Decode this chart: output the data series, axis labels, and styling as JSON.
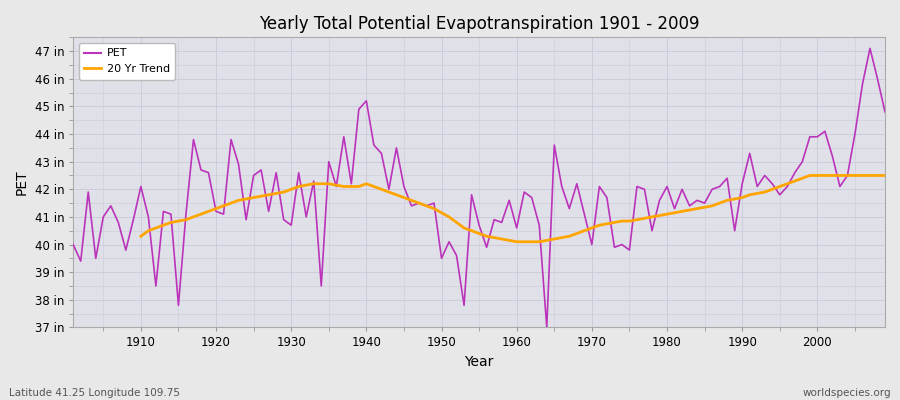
{
  "title": "Yearly Total Potential Evapotranspiration 1901 - 2009",
  "xlabel": "Year",
  "ylabel": "PET",
  "subtitle": "Latitude 41.25 Longitude 109.75",
  "watermark": "worldspecies.org",
  "ylim": [
    37,
    47.5
  ],
  "xlim": [
    1901,
    2009
  ],
  "yticks": [
    37,
    38,
    39,
    40,
    41,
    42,
    43,
    44,
    45,
    46,
    47
  ],
  "ytick_labels": [
    "37 in",
    "38 in",
    "39 in",
    "40 in",
    "41 in",
    "42 in",
    "43 in",
    "44 in",
    "45 in",
    "46 in",
    "47 in"
  ],
  "xticks": [
    1910,
    1920,
    1930,
    1940,
    1950,
    1960,
    1970,
    1980,
    1990,
    2000
  ],
  "pet_color": "#BB33BB",
  "trend_color": "#FFA500",
  "bg_color": "#E8E8E8",
  "plot_bg_color": "#E0E0E8",
  "grid_color": "#CCCCDD",
  "legend_labels": [
    "PET",
    "20 Yr Trend"
  ],
  "years": [
    1901,
    1902,
    1903,
    1904,
    1905,
    1906,
    1907,
    1908,
    1909,
    1910,
    1911,
    1912,
    1913,
    1914,
    1915,
    1916,
    1917,
    1918,
    1919,
    1920,
    1921,
    1922,
    1923,
    1924,
    1925,
    1926,
    1927,
    1928,
    1929,
    1930,
    1931,
    1932,
    1933,
    1934,
    1935,
    1936,
    1937,
    1938,
    1939,
    1940,
    1941,
    1942,
    1943,
    1944,
    1945,
    1946,
    1947,
    1948,
    1949,
    1950,
    1951,
    1952,
    1953,
    1954,
    1955,
    1956,
    1957,
    1958,
    1959,
    1960,
    1961,
    1962,
    1963,
    1964,
    1965,
    1966,
    1967,
    1968,
    1969,
    1970,
    1971,
    1972,
    1973,
    1974,
    1975,
    1976,
    1977,
    1978,
    1979,
    1980,
    1981,
    1982,
    1983,
    1984,
    1985,
    1986,
    1987,
    1988,
    1989,
    1990,
    1991,
    1992,
    1993,
    1994,
    1995,
    1996,
    1997,
    1998,
    1999,
    2000,
    2001,
    2002,
    2003,
    2004,
    2005,
    2006,
    2007,
    2008,
    2009
  ],
  "pet_values": [
    40.0,
    39.4,
    41.9,
    39.5,
    41.0,
    41.4,
    40.8,
    39.8,
    40.9,
    42.1,
    41.0,
    38.5,
    41.2,
    41.1,
    37.8,
    41.1,
    43.8,
    42.7,
    42.6,
    41.2,
    41.1,
    43.8,
    42.9,
    40.9,
    42.5,
    42.7,
    41.2,
    42.6,
    40.9,
    40.7,
    42.6,
    41.0,
    42.3,
    38.5,
    43.0,
    42.1,
    43.9,
    42.2,
    44.9,
    45.2,
    43.6,
    43.3,
    42.0,
    43.5,
    42.1,
    41.4,
    41.5,
    41.4,
    41.5,
    39.5,
    40.1,
    39.6,
    37.8,
    41.8,
    40.7,
    39.9,
    40.9,
    40.8,
    41.6,
    40.6,
    41.9,
    41.7,
    40.7,
    37.0,
    43.6,
    42.1,
    41.3,
    42.2,
    41.1,
    40.0,
    42.1,
    41.7,
    39.9,
    40.0,
    39.8,
    42.1,
    42.0,
    40.5,
    41.6,
    42.1,
    41.3,
    42.0,
    41.4,
    41.6,
    41.5,
    42.0,
    42.1,
    42.4,
    40.5,
    42.2,
    43.3,
    42.1,
    42.5,
    42.2,
    41.8,
    42.1,
    42.6,
    43.0,
    43.9,
    43.9,
    44.1,
    43.2,
    42.1,
    42.5,
    44.0,
    45.8,
    47.1,
    46.0,
    44.8
  ],
  "trend_values": [
    null,
    null,
    null,
    null,
    null,
    null,
    null,
    null,
    null,
    40.3,
    40.5,
    40.6,
    40.7,
    40.8,
    40.85,
    40.9,
    41.0,
    41.1,
    41.2,
    41.3,
    41.4,
    41.5,
    41.6,
    41.65,
    41.7,
    41.75,
    41.8,
    41.85,
    41.9,
    42.0,
    42.1,
    42.15,
    42.2,
    42.2,
    42.2,
    42.15,
    42.1,
    42.1,
    42.1,
    42.2,
    42.1,
    42.0,
    41.9,
    41.8,
    41.7,
    41.6,
    41.5,
    41.4,
    41.3,
    41.15,
    41.0,
    40.8,
    40.6,
    40.5,
    40.4,
    40.3,
    40.25,
    40.2,
    40.15,
    40.1,
    40.1,
    40.1,
    40.1,
    40.15,
    40.2,
    40.25,
    40.3,
    40.4,
    40.5,
    40.6,
    40.7,
    40.75,
    40.8,
    40.85,
    40.85,
    40.9,
    40.95,
    41.0,
    41.05,
    41.1,
    41.15,
    41.2,
    41.25,
    41.3,
    41.35,
    41.4,
    41.5,
    41.6,
    41.65,
    41.7,
    41.8,
    41.85,
    41.9,
    42.0,
    42.1,
    42.2,
    42.3,
    42.4,
    42.5,
    42.5,
    42.5,
    42.5,
    42.5,
    42.5,
    42.5,
    42.5,
    42.5,
    42.5,
    42.5
  ]
}
